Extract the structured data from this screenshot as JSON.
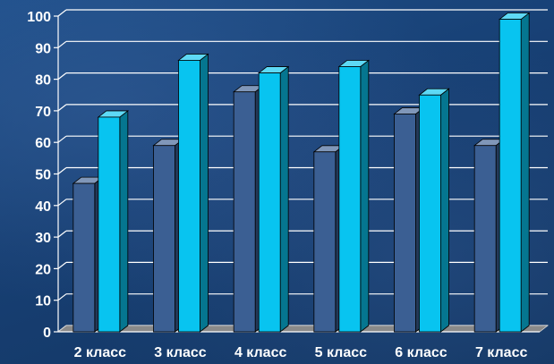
{
  "chart_data": {
    "type": "bar",
    "categories": [
      "2 класс",
      "3 класс",
      "4 класс",
      "5 класс",
      "6 класс",
      "7 класс"
    ],
    "series": [
      {
        "values": [
          47,
          59,
          76,
          57,
          69,
          59
        ],
        "color": "#3b5f93"
      },
      {
        "values": [
          68,
          86,
          82,
          84,
          75,
          99
        ],
        "color": "#08c4f0"
      }
    ],
    "ylim": [
      0,
      100
    ],
    "yticks": [
      0,
      10,
      20,
      30,
      40,
      50,
      60,
      70,
      80,
      90,
      100
    ],
    "grid": true,
    "legend": "none",
    "style": "3d-columns"
  }
}
